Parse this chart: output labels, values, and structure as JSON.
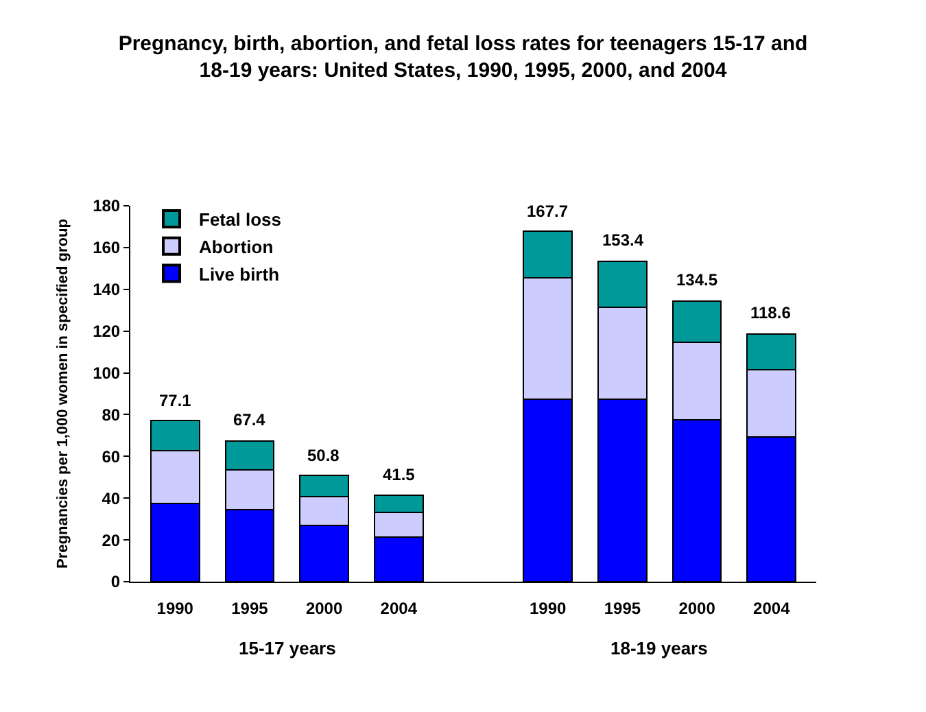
{
  "chart_data": {
    "type": "bar",
    "stacked": true,
    "title": "Pregnancy, birth, abortion, and fetal loss rates for teenagers 15-17 and 18-19 years: United States, 1990, 1995, 2000, and 2004",
    "ylabel": "Pregnancies per 1,000 women in specified group",
    "categories": [
      "1990",
      "1995",
      "2000",
      "2004",
      null,
      "1990",
      "1995",
      "2000",
      "2004"
    ],
    "series": [
      {
        "name": "Live birth",
        "color": "#0000ff",
        "values": [
          37.4,
          34.4,
          26.9,
          21.3,
          null,
          87.5,
          87.5,
          77.4,
          69.4
        ]
      },
      {
        "name": "Abortion",
        "color": "#ccccff",
        "values": [
          25.3,
          19.0,
          13.9,
          12.0,
          null,
          58.1,
          44.0,
          37.3,
          32.2
        ]
      },
      {
        "name": "Fetal loss",
        "color": "#009999",
        "values": [
          14.4,
          14.0,
          10.0,
          8.2,
          null,
          22.1,
          21.9,
          19.8,
          17.0
        ]
      }
    ],
    "totals": [
      "77.1",
      "67.4",
      "50.8",
      "41.5",
      null,
      "167.7",
      "153.4",
      "134.5",
      "118.6"
    ],
    "annotations": [
      "15-17 years",
      "18-19 years"
    ],
    "ylim": [
      0,
      180
    ],
    "yticks": [
      0,
      20,
      40,
      60,
      80,
      100,
      120,
      140,
      160,
      180
    ],
    "legend": "top left"
  }
}
